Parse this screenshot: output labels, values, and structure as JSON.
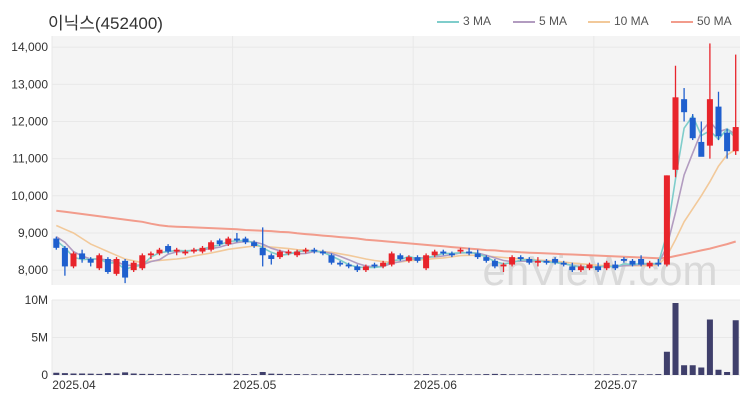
{
  "title": "이닉스(452400)",
  "watermark": "enVieW.com",
  "legend": [
    {
      "label": "3 MA",
      "color": "#7fcdcb"
    },
    {
      "label": "5 MA",
      "color": "#b29cc0"
    },
    {
      "label": "10 MA",
      "color": "#f2c99a"
    },
    {
      "label": "50 MA",
      "color": "#f29c8c"
    }
  ],
  "colors": {
    "up": "#e8242b",
    "down": "#1f5fce",
    "volume": "#3f3f6b",
    "grid": "#e8e8e8",
    "panel": "#f4f4f4"
  },
  "chart_data": [
    {
      "type": "candlestick",
      "title": "이닉스(452400)",
      "ylim": [
        7600,
        14300
      ],
      "yticks": [
        8000,
        9000,
        10000,
        11000,
        12000,
        13000,
        14000
      ],
      "ytick_labels": [
        "8,000",
        "9,000",
        "10,000",
        "11,000",
        "12,000",
        "13,000",
        "14,000"
      ],
      "xticks": [
        {
          "index": 0,
          "label": "2025.04"
        },
        {
          "index": 21,
          "label": "2025.05"
        },
        {
          "index": 42,
          "label": "2025.06"
        },
        {
          "index": 63,
          "label": "2025.07"
        }
      ],
      "ohlc": [
        [
          8850,
          8900,
          8550,
          8600
        ],
        [
          8600,
          8650,
          7850,
          8100
        ],
        [
          8100,
          8500,
          8050,
          8450
        ],
        [
          8450,
          8550,
          8200,
          8300
        ],
        [
          8300,
          8350,
          8100,
          8200
        ],
        [
          8050,
          8450,
          8000,
          8400
        ],
        [
          8300,
          8350,
          7900,
          7950
        ],
        [
          7900,
          8350,
          7850,
          8300
        ],
        [
          8250,
          8300,
          7650,
          7800
        ],
        [
          8000,
          8250,
          7950,
          8200
        ],
        [
          8050,
          8450,
          8000,
          8400
        ],
        [
          8400,
          8500,
          8300,
          8450
        ],
        [
          8450,
          8600,
          8400,
          8550
        ],
        [
          8650,
          8700,
          8450,
          8500
        ],
        [
          8500,
          8600,
          8400,
          8550
        ],
        [
          8450,
          8550,
          8400,
          8500
        ],
        [
          8500,
          8600,
          8450,
          8550
        ],
        [
          8500,
          8650,
          8450,
          8600
        ],
        [
          8550,
          8800,
          8500,
          8750
        ],
        [
          8800,
          8850,
          8650,
          8700
        ],
        [
          8700,
          8900,
          8650,
          8850
        ],
        [
          8850,
          9000,
          8750,
          8800
        ],
        [
          8850,
          8900,
          8700,
          8750
        ],
        [
          8750,
          8800,
          8600,
          8650
        ],
        [
          8600,
          9150,
          8100,
          8400
        ],
        [
          8400,
          8450,
          8150,
          8300
        ],
        [
          8350,
          8550,
          8300,
          8500
        ],
        [
          8450,
          8550,
          8400,
          8500
        ],
        [
          8400,
          8550,
          8350,
          8500
        ],
        [
          8500,
          8600,
          8450,
          8550
        ],
        [
          8550,
          8600,
          8450,
          8500
        ],
        [
          8500,
          8550,
          8400,
          8450
        ],
        [
          8400,
          8450,
          8150,
          8200
        ],
        [
          8200,
          8250,
          8100,
          8150
        ],
        [
          8150,
          8200,
          8050,
          8100
        ],
        [
          8100,
          8150,
          7950,
          8000
        ],
        [
          8000,
          8150,
          7950,
          8100
        ],
        [
          8150,
          8200,
          8050,
          8100
        ],
        [
          8100,
          8250,
          8050,
          8200
        ],
        [
          8150,
          8500,
          8100,
          8450
        ],
        [
          8400,
          8450,
          8250,
          8300
        ],
        [
          8250,
          8400,
          8200,
          8350
        ],
        [
          8350,
          8400,
          8200,
          8250
        ],
        [
          8050,
          8450,
          8000,
          8400
        ],
        [
          8400,
          8550,
          8350,
          8500
        ],
        [
          8500,
          8550,
          8400,
          8450
        ],
        [
          8450,
          8500,
          8350,
          8400
        ],
        [
          8500,
          8600,
          8450,
          8550
        ],
        [
          8500,
          8600,
          8400,
          8450
        ],
        [
          8450,
          8550,
          8300,
          8350
        ],
        [
          8350,
          8400,
          8200,
          8250
        ],
        [
          8250,
          8300,
          8050,
          8100
        ],
        [
          8100,
          8200,
          7950,
          8150
        ],
        [
          8150,
          8400,
          8100,
          8350
        ],
        [
          8350,
          8400,
          8250,
          8300
        ],
        [
          8300,
          8350,
          8150,
          8200
        ],
        [
          8200,
          8350,
          8100,
          8250
        ],
        [
          8250,
          8300,
          8150,
          8200
        ],
        [
          8300,
          8350,
          8150,
          8200
        ],
        [
          8200,
          8250,
          8100,
          8150
        ],
        [
          8100,
          8200,
          7950,
          8000
        ],
        [
          8000,
          8150,
          7950,
          8100
        ],
        [
          8050,
          8200,
          8000,
          8150
        ],
        [
          8100,
          8200,
          7950,
          8000
        ],
        [
          8050,
          8250,
          8000,
          8200
        ],
        [
          8150,
          8250,
          8000,
          8050
        ],
        [
          8300,
          8350,
          8200,
          8250
        ],
        [
          8250,
          8300,
          8100,
          8150
        ],
        [
          8300,
          8400,
          8100,
          8150
        ],
        [
          8100,
          8250,
          8050,
          8200
        ],
        [
          8200,
          8300,
          8100,
          8150
        ],
        [
          8150,
          10550,
          8100,
          10550
        ],
        [
          10700,
          13500,
          10500,
          12650
        ],
        [
          12600,
          12900,
          12000,
          12250
        ],
        [
          12100,
          12200,
          11500,
          11550
        ],
        [
          11450,
          12000,
          11100,
          11050
        ],
        [
          11350,
          14100,
          11000,
          12600
        ],
        [
          12400,
          12800,
          11500,
          11600
        ],
        [
          11700,
          11800,
          11000,
          11200
        ],
        [
          11200,
          13800,
          11100,
          11850
        ]
      ],
      "volume": [
        300000,
        250000,
        200000,
        200000,
        180000,
        150000,
        250000,
        200000,
        350000,
        200000,
        150000,
        150000,
        120000,
        150000,
        120000,
        100000,
        120000,
        120000,
        150000,
        150000,
        180000,
        150000,
        120000,
        120000,
        400000,
        180000,
        150000,
        120000,
        120000,
        100000,
        100000,
        100000,
        150000,
        120000,
        120000,
        120000,
        100000,
        100000,
        120000,
        150000,
        120000,
        100000,
        100000,
        120000,
        100000,
        100000,
        100000,
        120000,
        100000,
        100000,
        120000,
        150000,
        120000,
        100000,
        100000,
        100000,
        120000,
        100000,
        100000,
        100000,
        120000,
        100000,
        100000,
        100000,
        100000,
        100000,
        100000,
        100000,
        100000,
        100000,
        120000,
        3100000,
        9600000,
        1300000,
        1300000,
        1000000,
        7400000,
        700000,
        400000,
        7300000
      ],
      "volume_ylim": [
        0,
        10000000
      ],
      "volume_yticks": [
        0,
        5000000,
        10000000
      ],
      "volume_ytick_labels": [
        "0",
        "5M",
        "10M"
      ],
      "ma": {
        "3 MA": [
          8800,
          8600,
          8350,
          8280,
          8300,
          8300,
          8190,
          8200,
          8020,
          8100,
          8130,
          8350,
          8470,
          8500,
          8530,
          8520,
          8530,
          8570,
          8630,
          8680,
          8770,
          8790,
          8800,
          8730,
          8600,
          8480,
          8400,
          8430,
          8500,
          8520,
          8520,
          8480,
          8380,
          8270,
          8150,
          8080,
          8070,
          8070,
          8100,
          8250,
          8280,
          8370,
          8300,
          8330,
          8380,
          8450,
          8450,
          8470,
          8470,
          8450,
          8350,
          8230,
          8170,
          8200,
          8270,
          8280,
          8250,
          8220,
          8200,
          8180,
          8120,
          8080,
          8080,
          8080,
          8120,
          8080,
          8170,
          8150,
          8180,
          8170,
          8180,
          8970,
          10450,
          11820,
          12150,
          11620,
          11750,
          11520,
          11800,
          11550
        ],
        "5 MA": [
          8900,
          8750,
          8500,
          8380,
          8300,
          8300,
          8270,
          8230,
          8130,
          8130,
          8140,
          8230,
          8280,
          8430,
          8490,
          8510,
          8530,
          8550,
          8580,
          8620,
          8690,
          8740,
          8770,
          8760,
          8700,
          8590,
          8520,
          8470,
          8440,
          8450,
          8500,
          8490,
          8450,
          8370,
          8280,
          8180,
          8110,
          8090,
          8100,
          8180,
          8230,
          8290,
          8310,
          8350,
          8360,
          8380,
          8420,
          8460,
          8470,
          8460,
          8400,
          8330,
          8260,
          8230,
          8240,
          8240,
          8250,
          8230,
          8210,
          8170,
          8130,
          8090,
          8080,
          8090,
          8100,
          8100,
          8120,
          8130,
          8150,
          8160,
          8170,
          8630,
          9550,
          10560,
          11150,
          11720,
          12000,
          11720,
          11800,
          11650
        ],
        "10 MA": [
          9200,
          9100,
          9000,
          8850,
          8700,
          8600,
          8500,
          8400,
          8300,
          8250,
          8200,
          8240,
          8260,
          8280,
          8300,
          8330,
          8380,
          8420,
          8460,
          8510,
          8560,
          8590,
          8620,
          8650,
          8640,
          8620,
          8600,
          8580,
          8550,
          8540,
          8520,
          8500,
          8480,
          8440,
          8400,
          8350,
          8300,
          8260,
          8230,
          8210,
          8220,
          8250,
          8270,
          8290,
          8310,
          8330,
          8360,
          8390,
          8400,
          8400,
          8380,
          8360,
          8340,
          8320,
          8300,
          8290,
          8270,
          8260,
          8240,
          8220,
          8190,
          8170,
          8150,
          8130,
          8120,
          8120,
          8120,
          8120,
          8120,
          8130,
          8140,
          8380,
          8820,
          9300,
          9650,
          10000,
          10380,
          10800,
          11100,
          11250
        ],
        "50 MA": [
          9600,
          9570,
          9540,
          9510,
          9480,
          9450,
          9420,
          9390,
          9360,
          9330,
          9300,
          9250,
          9210,
          9180,
          9170,
          9160,
          9150,
          9140,
          9130,
          9120,
          9110,
          9100,
          9080,
          9070,
          9060,
          9050,
          9030,
          9020,
          8990,
          8970,
          8950,
          8930,
          8910,
          8890,
          8870,
          8850,
          8820,
          8800,
          8780,
          8760,
          8740,
          8720,
          8700,
          8680,
          8660,
          8640,
          8620,
          8600,
          8580,
          8560,
          8540,
          8530,
          8510,
          8500,
          8480,
          8470,
          8460,
          8450,
          8440,
          8430,
          8420,
          8410,
          8400,
          8390,
          8380,
          8370,
          8360,
          8350,
          8340,
          8330,
          8320,
          8330,
          8380,
          8430,
          8480,
          8530,
          8580,
          8640,
          8700,
          8770
        ]
      }
    }
  ]
}
